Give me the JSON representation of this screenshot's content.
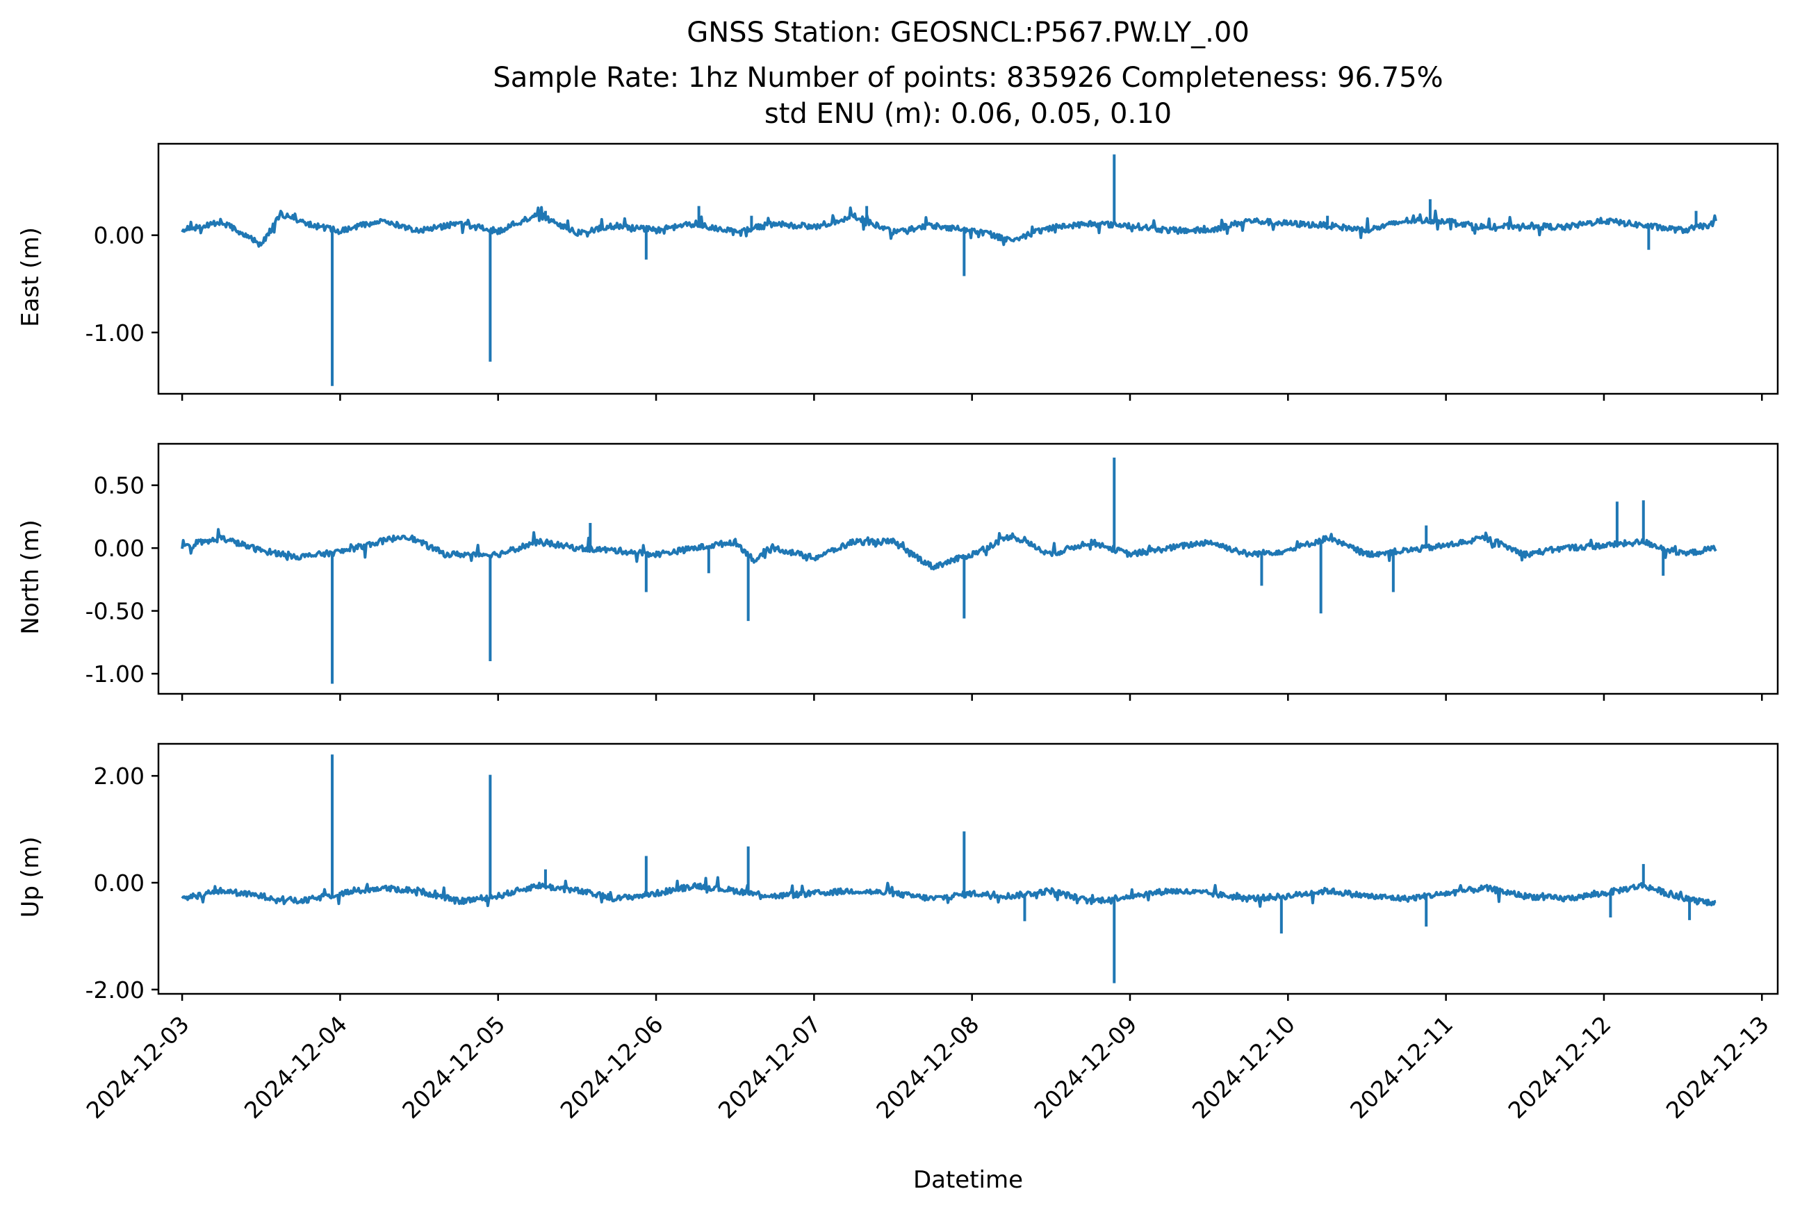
{
  "chart_data": {
    "type": "line",
    "title_lines": [
      "GNSS Station: GEOSNCL:P567.PW.LY_.00",
      "Sample Rate: 1hz   Number of points: 835926    Completeness:  96.75%",
      "std ENU (m):  0.06, 0.05, 0.10"
    ],
    "xlabel": "Datetime",
    "x_ticks": [
      "2024-12-03",
      "2024-12-04",
      "2024-12-05",
      "2024-12-06",
      "2024-12-07",
      "2024-12-08",
      "2024-12-09",
      "2024-12-10",
      "2024-12-11",
      "2024-12-12",
      "2024-12-13"
    ],
    "xlim": [
      "2024-12-02 20:24",
      "2024-12-13 02:24"
    ],
    "x_data_range": [
      "2024-12-03 00:00",
      "2024-12-12 17:00"
    ],
    "line_color": "#1f77b4",
    "grid": false,
    "legend": "none",
    "panels": [
      {
        "ylabel": "East (m)",
        "ylim": [
          -1.63,
          0.94
        ],
        "y_ticks": [
          0.0,
          -1.0
        ],
        "y_tick_labels": [
          "0.00",
          "-1.00"
        ],
        "baseline": [
          [
            "2024-12-03 00:00",
            0.05
          ],
          [
            "2024-12-03 06:00",
            0.14
          ],
          [
            "2024-12-03 12:00",
            -0.1
          ],
          [
            "2024-12-03 15:00",
            0.22
          ],
          [
            "2024-12-03 20:00",
            0.1
          ],
          [
            "2024-12-04 00:00",
            0.04
          ],
          [
            "2024-12-04 06:00",
            0.15
          ],
          [
            "2024-12-04 12:00",
            0.05
          ],
          [
            "2024-12-04 18:00",
            0.12
          ],
          [
            "2024-12-05 00:00",
            0.04
          ],
          [
            "2024-12-05 06:00",
            0.22
          ],
          [
            "2024-12-05 12:00",
            0.02
          ],
          [
            "2024-12-05 18:00",
            0.1
          ],
          [
            "2024-12-06 00:00",
            0.05
          ],
          [
            "2024-12-06 06:00",
            0.12
          ],
          [
            "2024-12-06 12:00",
            0.03
          ],
          [
            "2024-12-06 18:00",
            0.12
          ],
          [
            "2024-12-07 00:00",
            0.08
          ],
          [
            "2024-12-07 06:00",
            0.2
          ],
          [
            "2024-12-07 12:00",
            0.03
          ],
          [
            "2024-12-07 18:00",
            0.1
          ],
          [
            "2024-12-08 00:00",
            0.05
          ],
          [
            "2024-12-08 06:00",
            -0.05
          ],
          [
            "2024-12-08 12:00",
            0.08
          ],
          [
            "2024-12-08 18:00",
            0.12
          ],
          [
            "2024-12-09 00:00",
            0.1
          ],
          [
            "2024-12-09 06:00",
            0.05
          ],
          [
            "2024-12-09 12:00",
            0.05
          ],
          [
            "2024-12-09 18:00",
            0.15
          ],
          [
            "2024-12-10 00:00",
            0.12
          ],
          [
            "2024-12-10 06:00",
            0.1
          ],
          [
            "2024-12-10 12:00",
            0.05
          ],
          [
            "2024-12-10 18:00",
            0.15
          ],
          [
            "2024-12-11 00:00",
            0.15
          ],
          [
            "2024-12-11 06:00",
            0.08
          ],
          [
            "2024-12-11 12:00",
            0.1
          ],
          [
            "2024-12-11 18:00",
            0.08
          ],
          [
            "2024-12-12 00:00",
            0.15
          ],
          [
            "2024-12-12 06:00",
            0.1
          ],
          [
            "2024-12-12 12:00",
            0.05
          ],
          [
            "2024-12-12 17:00",
            0.12
          ]
        ],
        "spikes": [
          [
            "2024-12-03 22:48",
            -1.55
          ],
          [
            "2024-12-04 22:48",
            -1.3
          ],
          [
            "2024-12-05 07:12",
            0.25
          ],
          [
            "2024-12-05 22:30",
            -0.25
          ],
          [
            "2024-12-06 06:30",
            0.3
          ],
          [
            "2024-12-06 14:30",
            0.2
          ],
          [
            "2024-12-07 08:00",
            0.3
          ],
          [
            "2024-12-07 22:48",
            -0.42
          ],
          [
            "2024-12-08 21:36",
            0.83
          ],
          [
            "2024-12-10 06:00",
            0.2
          ],
          [
            "2024-12-10 21:36",
            0.37
          ],
          [
            "2024-12-12 06:48",
            -0.15
          ],
          [
            "2024-12-12 14:00",
            0.25
          ]
        ]
      },
      {
        "ylabel": "North (m)",
        "ylim": [
          -1.16,
          0.83
        ],
        "y_ticks": [
          0.5,
          0.0,
          -0.5,
          -1.0
        ],
        "y_tick_labels": [
          "0.50",
          "0.00",
          "-0.50",
          "-1.00"
        ],
        "baseline": [
          [
            "2024-12-03 00:00",
            0.0
          ],
          [
            "2024-12-03 06:00",
            0.08
          ],
          [
            "2024-12-03 12:00",
            -0.02
          ],
          [
            "2024-12-03 18:00",
            -0.07
          ],
          [
            "2024-12-04 00:00",
            -0.03
          ],
          [
            "2024-12-04 06:00",
            0.05
          ],
          [
            "2024-12-04 10:00",
            0.1
          ],
          [
            "2024-12-04 16:00",
            -0.05
          ],
          [
            "2024-12-05 00:00",
            -0.05
          ],
          [
            "2024-12-05 06:00",
            0.05
          ],
          [
            "2024-12-05 12:00",
            0.0
          ],
          [
            "2024-12-05 18:00",
            -0.02
          ],
          [
            "2024-12-06 00:00",
            -0.05
          ],
          [
            "2024-12-06 06:00",
            0.0
          ],
          [
            "2024-12-06 12:00",
            0.05
          ],
          [
            "2024-12-06 15:00",
            -0.1
          ],
          [
            "2024-12-06 18:00",
            0.0
          ],
          [
            "2024-12-07 00:00",
            -0.08
          ],
          [
            "2024-12-07 06:00",
            0.05
          ],
          [
            "2024-12-07 12:00",
            0.05
          ],
          [
            "2024-12-07 18:00",
            -0.15
          ],
          [
            "2024-12-08 00:00",
            -0.05
          ],
          [
            "2024-12-08 06:00",
            0.1
          ],
          [
            "2024-12-08 12:00",
            -0.05
          ],
          [
            "2024-12-08 18:00",
            0.05
          ],
          [
            "2024-12-09 00:00",
            -0.05
          ],
          [
            "2024-12-09 06:00",
            0.0
          ],
          [
            "2024-12-09 12:00",
            0.05
          ],
          [
            "2024-12-09 18:00",
            -0.05
          ],
          [
            "2024-12-10 00:00",
            -0.02
          ],
          [
            "2024-12-10 06:00",
            0.08
          ],
          [
            "2024-12-10 12:00",
            -0.05
          ],
          [
            "2024-12-10 18:00",
            -0.02
          ],
          [
            "2024-12-11 00:00",
            0.02
          ],
          [
            "2024-12-11 06:00",
            0.08
          ],
          [
            "2024-12-11 12:00",
            -0.05
          ],
          [
            "2024-12-11 18:00",
            0.0
          ],
          [
            "2024-12-12 00:00",
            0.02
          ],
          [
            "2024-12-12 06:00",
            0.05
          ],
          [
            "2024-12-12 12:00",
            -0.05
          ],
          [
            "2024-12-12 17:00",
            0.0
          ]
        ],
        "spikes": [
          [
            "2024-12-03 22:48",
            -1.08
          ],
          [
            "2024-12-04 22:48",
            -0.9
          ],
          [
            "2024-12-05 14:00",
            0.2
          ],
          [
            "2024-12-05 22:30",
            -0.35
          ],
          [
            "2024-12-06 08:00",
            -0.2
          ],
          [
            "2024-12-06 14:00",
            -0.58
          ],
          [
            "2024-12-07 22:48",
            -0.56
          ],
          [
            "2024-12-08 21:36",
            0.72
          ],
          [
            "2024-12-09 20:00",
            -0.3
          ],
          [
            "2024-12-10 05:00",
            -0.52
          ],
          [
            "2024-12-10 16:00",
            -0.35
          ],
          [
            "2024-12-10 21:00",
            0.18
          ],
          [
            "2024-12-12 02:00",
            0.37
          ],
          [
            "2024-12-12 06:00",
            0.38
          ],
          [
            "2024-12-12 09:00",
            -0.22
          ]
        ]
      },
      {
        "ylabel": "Up (m)",
        "ylim": [
          -2.08,
          2.6
        ],
        "y_ticks": [
          2.0,
          0.0,
          -2.0
        ],
        "y_tick_labels": [
          "2.00",
          "0.00",
          "-2.00"
        ],
        "baseline": [
          [
            "2024-12-03 00:00",
            -0.3
          ],
          [
            "2024-12-03 06:00",
            -0.15
          ],
          [
            "2024-12-03 12:00",
            -0.25
          ],
          [
            "2024-12-03 18:00",
            -0.35
          ],
          [
            "2024-12-04 00:00",
            -0.2
          ],
          [
            "2024-12-04 06:00",
            -0.1
          ],
          [
            "2024-12-04 12:00",
            -0.15
          ],
          [
            "2024-12-04 18:00",
            -0.35
          ],
          [
            "2024-12-05 00:00",
            -0.25
          ],
          [
            "2024-12-05 06:00",
            -0.05
          ],
          [
            "2024-12-05 12:00",
            -0.15
          ],
          [
            "2024-12-05 18:00",
            -0.3
          ],
          [
            "2024-12-06 00:00",
            -0.2
          ],
          [
            "2024-12-06 06:00",
            -0.05
          ],
          [
            "2024-12-06 12:00",
            -0.15
          ],
          [
            "2024-12-06 18:00",
            -0.25
          ],
          [
            "2024-12-07 00:00",
            -0.2
          ],
          [
            "2024-12-07 06:00",
            -0.15
          ],
          [
            "2024-12-07 12:00",
            -0.2
          ],
          [
            "2024-12-07 18:00",
            -0.3
          ],
          [
            "2024-12-08 00:00",
            -0.2
          ],
          [
            "2024-12-08 06:00",
            -0.25
          ],
          [
            "2024-12-08 12:00",
            -0.15
          ],
          [
            "2024-12-08 18:00",
            -0.35
          ],
          [
            "2024-12-09 00:00",
            -0.25
          ],
          [
            "2024-12-09 06:00",
            -0.15
          ],
          [
            "2024-12-09 12:00",
            -0.2
          ],
          [
            "2024-12-09 18:00",
            -0.3
          ],
          [
            "2024-12-10 00:00",
            -0.25
          ],
          [
            "2024-12-10 06:00",
            -0.15
          ],
          [
            "2024-12-10 12:00",
            -0.25
          ],
          [
            "2024-12-10 18:00",
            -0.3
          ],
          [
            "2024-12-11 00:00",
            -0.2
          ],
          [
            "2024-12-11 06:00",
            -0.1
          ],
          [
            "2024-12-11 12:00",
            -0.25
          ],
          [
            "2024-12-11 18:00",
            -0.3
          ],
          [
            "2024-12-12 00:00",
            -0.2
          ],
          [
            "2024-12-12 06:00",
            -0.05
          ],
          [
            "2024-12-12 12:00",
            -0.3
          ],
          [
            "2024-12-12 17:00",
            -0.4
          ]
        ],
        "spikes": [
          [
            "2024-12-03 22:48",
            2.4
          ],
          [
            "2024-12-04 22:48",
            2.02
          ],
          [
            "2024-12-05 07:12",
            0.25
          ],
          [
            "2024-12-05 22:30",
            0.5
          ],
          [
            "2024-12-06 14:00",
            0.68
          ],
          [
            "2024-12-07 22:48",
            0.96
          ],
          [
            "2024-12-08 08:00",
            -0.72
          ],
          [
            "2024-12-08 21:36",
            -1.88
          ],
          [
            "2024-12-09 23:00",
            -0.95
          ],
          [
            "2024-12-10 21:00",
            -0.82
          ],
          [
            "2024-12-12 01:00",
            -0.65
          ],
          [
            "2024-12-12 06:00",
            0.35
          ],
          [
            "2024-12-12 13:00",
            -0.7
          ]
        ]
      }
    ]
  }
}
